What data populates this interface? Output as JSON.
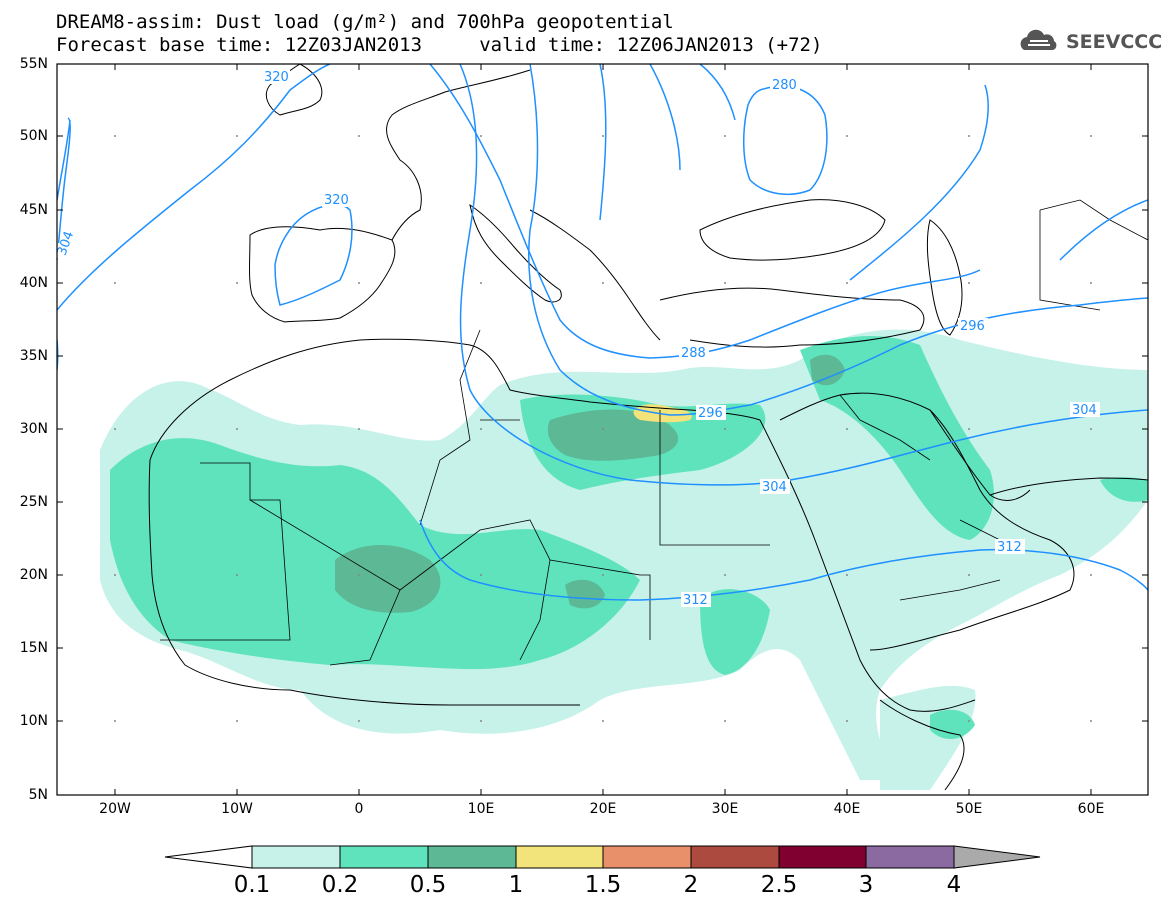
{
  "header": {
    "title_line1": "DREAM8-assim: Dust load (g/m²) and 700hPa geopotential",
    "title_line2": "Forecast base time: 12Z03JAN2013     valid time: 12Z06JAN2013 (+72)",
    "logo_text": "SEEVCCC"
  },
  "map": {
    "lat_labels": [
      "55N",
      "50N",
      "45N",
      "40N",
      "35N",
      "30N",
      "25N",
      "20N",
      "15N",
      "10N",
      "5N"
    ],
    "lon_labels": [
      "20W",
      "10W",
      "0",
      "10E",
      "20E",
      "30E",
      "40E",
      "50E",
      "60E"
    ],
    "contour_labels": [
      "280",
      "288",
      "296",
      "296",
      "304",
      "304",
      "304",
      "312",
      "312",
      "320",
      "320"
    ],
    "contour_color": "#1e90ff"
  },
  "colorbar": {
    "labels": [
      "0.1",
      "0.2",
      "0.5",
      "1",
      "1.5",
      "2",
      "2.5",
      "3",
      "4"
    ],
    "colors": [
      "#c6f2ea",
      "#5fe3bc",
      "#5cb895",
      "#f2e37a",
      "#e8906a",
      "#ad4a40",
      "#800030",
      "#8a6aa0"
    ]
  }
}
